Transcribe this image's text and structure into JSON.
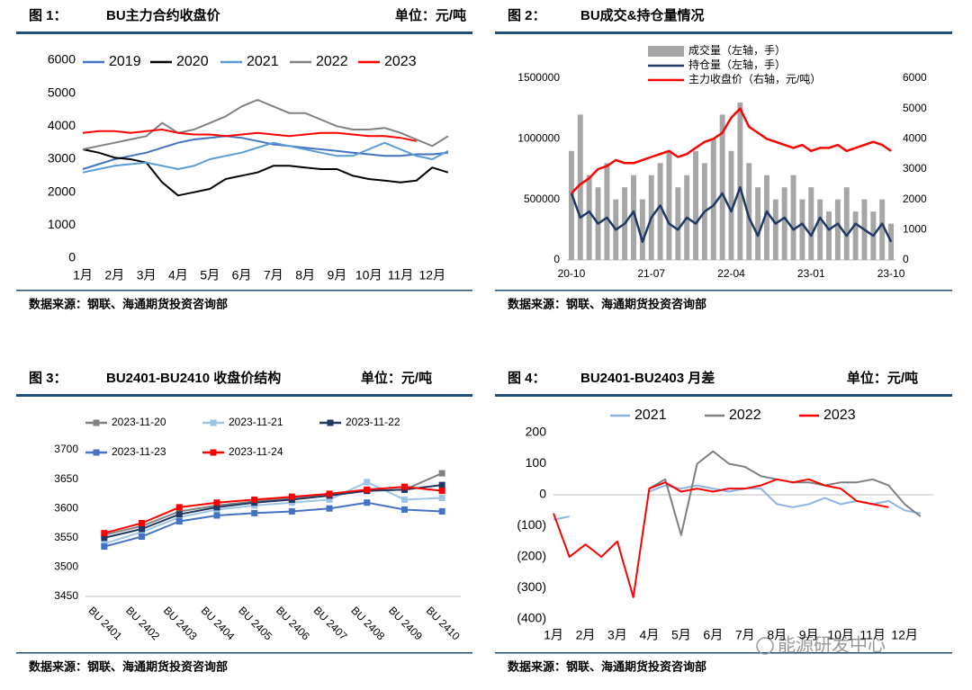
{
  "chart_data": [
    {
      "type": "line",
      "figure": "图 1：",
      "title": "BU主力合约收盘价",
      "unit": "单位：元/吨",
      "source": "数据来源：钢联、海通期货投资咨询部",
      "x": [
        1,
        1.5,
        2,
        2.5,
        3,
        3.5,
        4,
        4.5,
        5,
        5.5,
        6,
        6.5,
        7,
        7.5,
        8,
        8.5,
        9,
        9.5,
        10,
        10.5,
        11,
        11.5,
        12,
        12.5
      ],
      "xlim": [
        1,
        12.7
      ],
      "xticks": [
        {
          "value": 1,
          "label": "1月"
        },
        {
          "value": 2,
          "label": "2月"
        },
        {
          "value": 3,
          "label": "3月"
        },
        {
          "value": 4,
          "label": "4月"
        },
        {
          "value": 5,
          "label": "5月"
        },
        {
          "value": 6,
          "label": "6月"
        },
        {
          "value": 7,
          "label": "7月"
        },
        {
          "value": 8,
          "label": "8月"
        },
        {
          "value": 9,
          "label": "9月"
        },
        {
          "value": 10,
          "label": "10月"
        },
        {
          "value": 11,
          "label": "11月"
        },
        {
          "value": 12,
          "label": "12月"
        }
      ],
      "ylim": [
        0,
        6000
      ],
      "yticks": [
        0,
        1000,
        2000,
        3000,
        4000,
        5000,
        6000
      ],
      "series": [
        {
          "name": "2019",
          "color": "#4472c4",
          "values": [
            2700,
            2850,
            3000,
            3100,
            3200,
            3350,
            3500,
            3600,
            3650,
            3700,
            3650,
            3550,
            3450,
            3400,
            3350,
            3300,
            3250,
            3200,
            3150,
            3100,
            3100,
            3150,
            3150,
            3200
          ]
        },
        {
          "name": "2020",
          "color": "#000000",
          "values": [
            3300,
            3200,
            3050,
            3000,
            2900,
            2300,
            1900,
            2000,
            2100,
            2400,
            2500,
            2600,
            2800,
            2800,
            2750,
            2700,
            2700,
            2500,
            2400,
            2350,
            2300,
            2350,
            2750,
            2600
          ]
        },
        {
          "name": "2021",
          "color": "#5b9bd5",
          "values": [
            2600,
            2700,
            2800,
            2850,
            2900,
            2800,
            2700,
            2800,
            3000,
            3100,
            3200,
            3350,
            3500,
            3400,
            3300,
            3200,
            3100,
            3100,
            3300,
            3500,
            3300,
            3100,
            3000,
            3250
          ]
        },
        {
          "name": "2022",
          "color": "#808080",
          "values": [
            3300,
            3400,
            3500,
            3600,
            3700,
            4100,
            3800,
            3900,
            4100,
            4300,
            4600,
            4800,
            4600,
            4400,
            4400,
            4200,
            4000,
            3900,
            3900,
            3950,
            3800,
            3600,
            3400,
            3700
          ]
        },
        {
          "name": "2023",
          "color": "#ff0000",
          "values": [
            3800,
            3850,
            3850,
            3800,
            3850,
            3900,
            3800,
            3750,
            3750,
            3700,
            3750,
            3800,
            3750,
            3700,
            3750,
            3800,
            3800,
            3750,
            3700,
            3700,
            3650,
            3550,
            null,
            null
          ]
        }
      ]
    },
    {
      "type": "bar-line",
      "figure": "图 2：",
      "title": "BU成交&持仓量情况",
      "source": "数据来源：钢联、海通期货投资咨询部",
      "categories": [
        "20-10",
        null,
        null,
        null,
        null,
        null,
        null,
        null,
        null,
        "21-07",
        null,
        null,
        null,
        null,
        null,
        null,
        null,
        null,
        "22-04",
        null,
        null,
        null,
        null,
        null,
        null,
        null,
        null,
        "23-01",
        null,
        null,
        null,
        null,
        null,
        null,
        null,
        null,
        "23-10"
      ],
      "ylim": [
        0,
        1500000
      ],
      "yticks": [
        0,
        500000,
        1000000,
        1500000
      ],
      "y2lim": [
        0,
        6000
      ],
      "y2ticks": [
        0,
        1000,
        2000,
        3000,
        4000,
        5000,
        6000
      ],
      "series": [
        {
          "name": "成交量（左轴，手）",
          "type": "bar",
          "color": "#a6a6a6",
          "values": [
            900000,
            1200000,
            700000,
            600000,
            800000,
            500000,
            600000,
            700000,
            500000,
            700000,
            800000,
            900000,
            600000,
            700000,
            900000,
            800000,
            1000000,
            1200000,
            900000,
            1300000,
            800000,
            600000,
            700000,
            500000,
            600000,
            700000,
            500000,
            600000,
            500000,
            400000,
            500000,
            600000,
            400000,
            500000,
            400000,
            500000,
            300000
          ]
        },
        {
          "name": "持仓量（左轴，手）",
          "type": "line",
          "color": "#1f3864",
          "values": [
            550000,
            350000,
            400000,
            300000,
            350000,
            250000,
            300000,
            400000,
            150000,
            350000,
            450000,
            300000,
            250000,
            350000,
            300000,
            400000,
            450000,
            550000,
            400000,
            600000,
            350000,
            200000,
            400000,
            300000,
            350000,
            250000,
            300000,
            200000,
            350000,
            250000,
            300000,
            200000,
            300000,
            250000,
            200000,
            300000,
            150000
          ]
        },
        {
          "name": "主力收盘价（右轴，元/吨）",
          "type": "line",
          "axis": "y2",
          "color": "#ff0000",
          "values": [
            2200,
            2500,
            2700,
            3000,
            3100,
            3300,
            3200,
            3200,
            3300,
            3400,
            3500,
            3600,
            3400,
            3500,
            3700,
            3900,
            4000,
            4200,
            4700,
            5000,
            4400,
            4200,
            4000,
            3900,
            3800,
            3700,
            3800,
            3600,
            3700,
            3700,
            3800,
            3600,
            3700,
            3800,
            3900,
            3800,
            3600
          ]
        }
      ]
    },
    {
      "type": "line",
      "markers": true,
      "figure": "图 3：",
      "title": "BU2401-BU2410 收盘价结构",
      "unit": "单位：元/吨",
      "source": "数据来源：钢联、海通期货投资咨询部",
      "categories": [
        "BU 2401",
        "BU 2402",
        "BU 2403",
        "BU 2404",
        "BU 2405",
        "BU 2406",
        "BU 2407",
        "BU 2408",
        "BU 2409",
        "BU 2410"
      ],
      "ylim": [
        3450,
        3700
      ],
      "yticks": [
        3450,
        3500,
        3550,
        3600,
        3650,
        3700
      ],
      "series": [
        {
          "name": "2023-11-20",
          "color": "#808080",
          "values": [
            3555,
            3570,
            3595,
            3605,
            3612,
            3618,
            3625,
            3630,
            3632,
            3660
          ]
        },
        {
          "name": "2023-11-21",
          "color": "#9dc3e6",
          "values": [
            3540,
            3560,
            3585,
            3598,
            3605,
            3610,
            3615,
            3645,
            3615,
            3618
          ]
        },
        {
          "name": "2023-11-22",
          "color": "#1f3864",
          "values": [
            3550,
            3565,
            3590,
            3602,
            3610,
            3615,
            3622,
            3630,
            3632,
            3640
          ]
        },
        {
          "name": "2023-11-23",
          "color": "#4472c4",
          "values": [
            3535,
            3552,
            3578,
            3588,
            3592,
            3595,
            3600,
            3610,
            3598,
            3595
          ]
        },
        {
          "name": "2023-11-24",
          "color": "#ff0000",
          "values": [
            3558,
            3575,
            3602,
            3610,
            3615,
            3620,
            3625,
            3632,
            3637,
            3630
          ]
        }
      ]
    },
    {
      "type": "line",
      "zero_line": true,
      "figure": "图 4：",
      "title": "BU2401-BU2403 月差",
      "unit": "单位：元/吨",
      "source": "数据来源：钢联、海通期货投资咨询部",
      "watermark": "能源研发中心",
      "x": [
        1,
        1.5,
        2,
        2.5,
        3,
        3.5,
        4,
        4.5,
        5,
        5.5,
        6,
        6.5,
        7,
        7.5,
        8,
        8.5,
        9,
        9.5,
        10,
        10.5,
        11,
        11.5,
        12,
        12.5
      ],
      "xlim": [
        1,
        12.9
      ],
      "xticks": [
        {
          "value": 1,
          "label": "1月"
        },
        {
          "value": 2,
          "label": "2月"
        },
        {
          "value": 3,
          "label": "3月"
        },
        {
          "value": 4,
          "label": "4月"
        },
        {
          "value": 5,
          "label": "5月"
        },
        {
          "value": 6,
          "label": "6月"
        },
        {
          "value": 7,
          "label": "7月"
        },
        {
          "value": 8,
          "label": "8月"
        },
        {
          "value": 9,
          "label": "9月"
        },
        {
          "value": 10,
          "label": "10月"
        },
        {
          "value": 11,
          "label": "11月"
        },
        {
          "value": 12,
          "label": "12月"
        }
      ],
      "ylim": [
        -400,
        200
      ],
      "yticks": [
        {
          "value": -400,
          "label": "(400)"
        },
        {
          "value": -300,
          "label": "(300)"
        },
        {
          "value": -200,
          "label": "(200)"
        },
        {
          "value": -100,
          "label": "(100)"
        },
        0,
        100,
        200
      ],
      "series": [
        {
          "name": "2021",
          "color": "#8db4e2",
          "values": [
            -80,
            -70,
            null,
            null,
            null,
            null,
            10,
            30,
            20,
            30,
            20,
            10,
            20,
            20,
            -30,
            -40,
            -30,
            -10,
            -30,
            -20,
            -30,
            -20,
            -50,
            -60
          ]
        },
        {
          "name": "2022",
          "color": "#808080",
          "values": [
            -70,
            null,
            null,
            null,
            null,
            null,
            20,
            50,
            -130,
            100,
            140,
            100,
            90,
            60,
            50,
            40,
            40,
            30,
            40,
            40,
            50,
            30,
            -30,
            -70
          ]
        },
        {
          "name": "2023",
          "color": "#ff0000",
          "values": [
            -60,
            -200,
            -160,
            -200,
            -150,
            -330,
            20,
            40,
            10,
            20,
            10,
            20,
            20,
            30,
            50,
            40,
            50,
            30,
            20,
            -20,
            -30,
            -40,
            null,
            null
          ]
        }
      ]
    }
  ]
}
